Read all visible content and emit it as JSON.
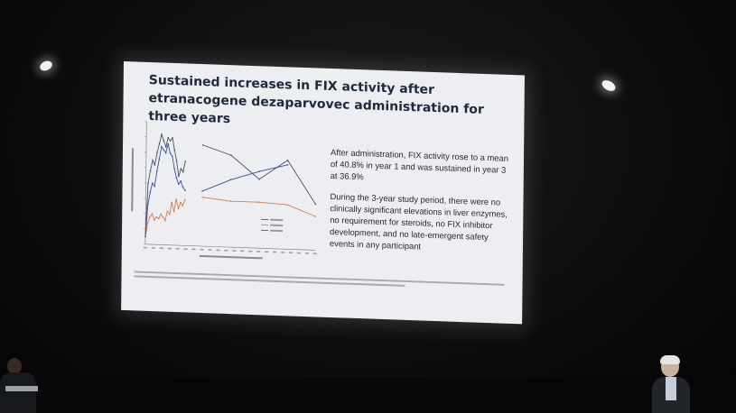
{
  "slide": {
    "title": "Sustained increases in FIX activity after etranacogene dezaparvovec administration for three years",
    "paragraph_1": "After administration, FIX activity rose to a mean of 40.8% in year 1 and was sustained in year 3 at 36.9%",
    "paragraph_2": "During the 3-year study period, there were no clinically significant elevations in liver enzymes, no requirement for steroids, no FIX inhibitor development, and no late-emergent safety events in any participant"
  },
  "colors": {
    "screen": "#eceef2",
    "title_text": "#1e2a3a",
    "participant_1": "#4a4f5a",
    "participant_2": "#e0784c",
    "participant_3": "#3c4ea0"
  },
  "chart_data": {
    "type": "line",
    "x": [
      0,
      2,
      4,
      6,
      8,
      10,
      12,
      14,
      16,
      18,
      20,
      22,
      24,
      26,
      28,
      30,
      32,
      34,
      36,
      39,
      52,
      78,
      104,
      130,
      156
    ],
    "series": [
      {
        "name": "",
        "values": [
          5,
          40,
          48,
          55,
          52,
          60,
          66,
          72,
          68,
          64,
          70,
          68,
          70,
          62,
          55,
          45,
          50,
          48,
          55,
          null,
          66,
          60,
          45,
          58,
          30
        ]
      },
      {
        "name": "",
        "values": [
          5,
          14,
          18,
          20,
          16,
          18,
          17,
          20,
          18,
          16,
          22,
          20,
          28,
          22,
          30,
          24,
          28,
          26,
          30,
          null,
          32,
          30,
          30,
          29,
          22
        ]
      },
      {
        "name": "",
        "values": [
          5,
          26,
          34,
          40,
          38,
          48,
          56,
          64,
          62,
          60,
          66,
          60,
          58,
          50,
          44,
          40,
          42,
          38,
          36,
          null,
          36,
          44,
          50,
          55,
          null
        ]
      }
    ],
    "xlabel": "",
    "ylabel": "",
    "ylim": [
      0,
      80
    ],
    "grid": false,
    "legend": "bottom-right"
  }
}
